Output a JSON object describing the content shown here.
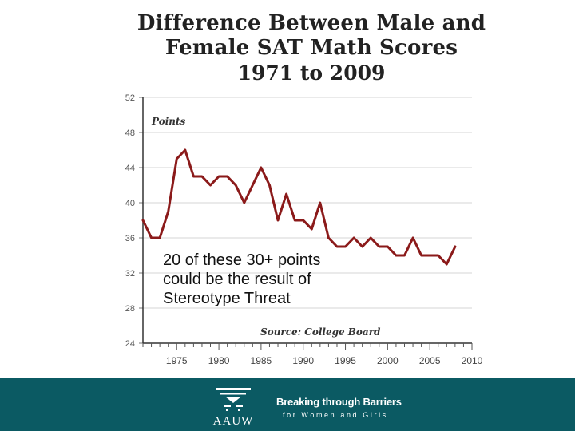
{
  "slide": {
    "title_lines": [
      "Difference Between Male and",
      "Female SAT Math Scores",
      "1971 to 2009"
    ],
    "annotation": "20 of these 30+ points could be the result of Stereotype Threat"
  },
  "footer": {
    "logo_text": "AAUW",
    "tagline": "Breaking through Barriers",
    "subtagline": "for Women and Girls",
    "background_color": "#0b5a63"
  },
  "chart_data": {
    "type": "line",
    "ylabel": "Points",
    "source": "Source: College Board",
    "ylim": [
      24,
      52
    ],
    "yticks": [
      24,
      28,
      32,
      36,
      40,
      44,
      48,
      52
    ],
    "xlim": [
      1971,
      2010
    ],
    "xticks": [
      1975,
      1980,
      1985,
      1990,
      1995,
      2000,
      2005,
      2010
    ],
    "grid": true,
    "line_color": "#8b1a1a",
    "series": [
      {
        "x": [
          1971,
          1972,
          1973,
          1974,
          1975,
          1976,
          1977,
          1978,
          1979,
          1980,
          1981,
          1982,
          1983,
          1984,
          1985,
          1986,
          1987,
          1988,
          1989,
          1990,
          1991,
          1992,
          1993,
          1994,
          1995,
          1996,
          1997,
          1998,
          1999,
          2000,
          2001,
          2002,
          2003,
          2004,
          2005,
          2006,
          2007,
          2008,
          2009
        ],
        "values": [
          38,
          36,
          36,
          39,
          45,
          46,
          43,
          43,
          42,
          43,
          43,
          42,
          40,
          42,
          44,
          42,
          38,
          41,
          38,
          38,
          37,
          40,
          36,
          35,
          35,
          36,
          35,
          36,
          35,
          35,
          34,
          34,
          36,
          34,
          34,
          34,
          33,
          35,
          null
        ]
      }
    ]
  }
}
